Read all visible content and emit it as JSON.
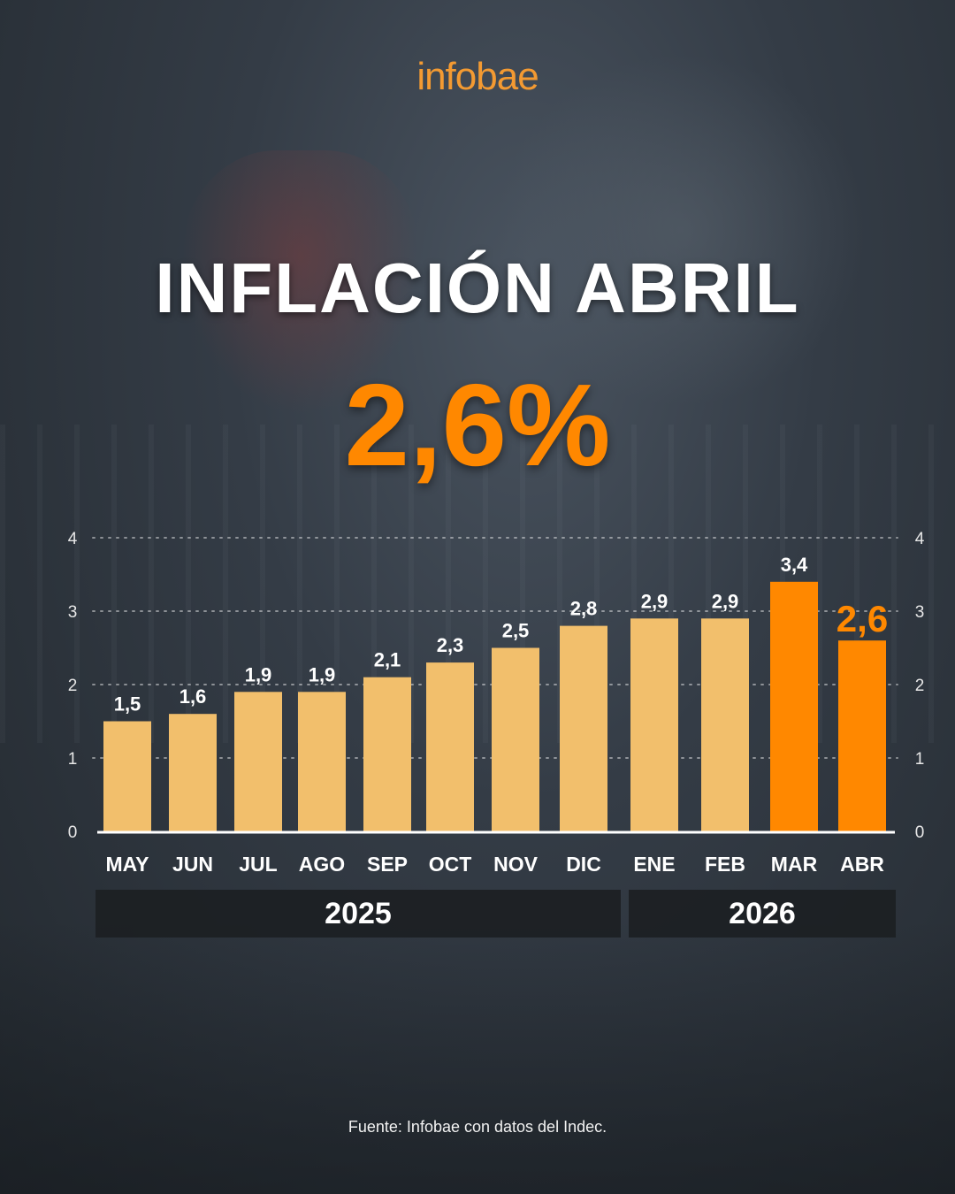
{
  "logo": "infobae",
  "title": "INFLACIÓN ABRIL",
  "headline_value": "2,6%",
  "source": "Fuente: Infobae con datos del Indec.",
  "colors": {
    "bar_default": "#f2bf6c",
    "bar_highlight": "#ff8800",
    "accent": "#ff8800",
    "logo": "#f39a32",
    "year_band": "#1c1f23"
  },
  "chart_data": {
    "type": "bar",
    "title": "INFLACIÓN ABRIL",
    "categories": [
      "MAY",
      "JUN",
      "JUL",
      "AGO",
      "SEP",
      "OCT",
      "NOV",
      "DIC",
      "ENE",
      "FEB",
      "MAR",
      "ABR"
    ],
    "values": [
      1.5,
      1.6,
      1.9,
      1.9,
      2.1,
      2.3,
      2.5,
      2.8,
      2.9,
      2.9,
      3.4,
      2.6
    ],
    "value_labels": [
      "1,5",
      "1,6",
      "1,9",
      "1,9",
      "2,1",
      "2,3",
      "2,5",
      "2,8",
      "2,9",
      "2,9",
      "3,4",
      "2,6"
    ],
    "highlighted_categories": [
      "MAR",
      "ABR"
    ],
    "ylim": [
      0,
      4
    ],
    "yticks": [
      "0",
      "1",
      "2",
      "3",
      "4"
    ],
    "y_axis_sides": "both",
    "grid": "dotted horizontal",
    "xlabel": "",
    "ylabel": "",
    "year_groups": [
      {
        "label": "2025",
        "from": "MAY",
        "to": "DIC"
      },
      {
        "label": "2026",
        "from": "ENE",
        "to": "ABR"
      }
    ]
  }
}
